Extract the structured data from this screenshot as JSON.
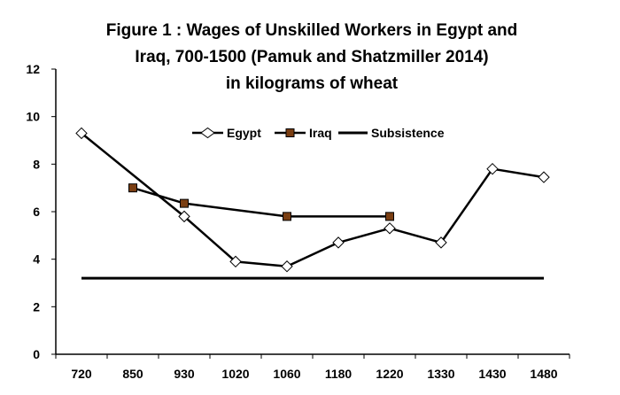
{
  "chart_data": {
    "type": "line",
    "title_lines": [
      "Figure 1 : Wages of Unskilled Workers in Egypt and",
      "Iraq, 700-1500 (Pamuk and Shatzmiller  2014)",
      "in kilograms of wheat"
    ],
    "categories": [
      "720",
      "850",
      "930",
      "1020",
      "1060",
      "1180",
      "1220",
      "1330",
      "1430",
      "1480"
    ],
    "ylim": [
      0,
      12
    ],
    "yticks": [
      0,
      2,
      4,
      6,
      8,
      10,
      12
    ],
    "legend_position": "top-center",
    "series": [
      {
        "name": "Egypt",
        "marker": "diamond",
        "color": "#000000",
        "values": [
          9.3,
          null,
          5.8,
          3.9,
          3.7,
          4.7,
          5.3,
          4.7,
          7.8,
          7.45
        ]
      },
      {
        "name": "Iraq",
        "marker": "square",
        "color": "#000000",
        "marker_fill": "#7a3e12",
        "values": [
          null,
          7.0,
          6.35,
          null,
          5.8,
          null,
          5.8,
          null,
          null,
          null
        ]
      },
      {
        "name": "Subsistence",
        "marker": "none",
        "color": "#000000",
        "values": [
          3.2,
          3.2,
          3.2,
          3.2,
          3.2,
          3.2,
          3.2,
          3.2,
          3.2,
          3.2
        ]
      }
    ]
  }
}
